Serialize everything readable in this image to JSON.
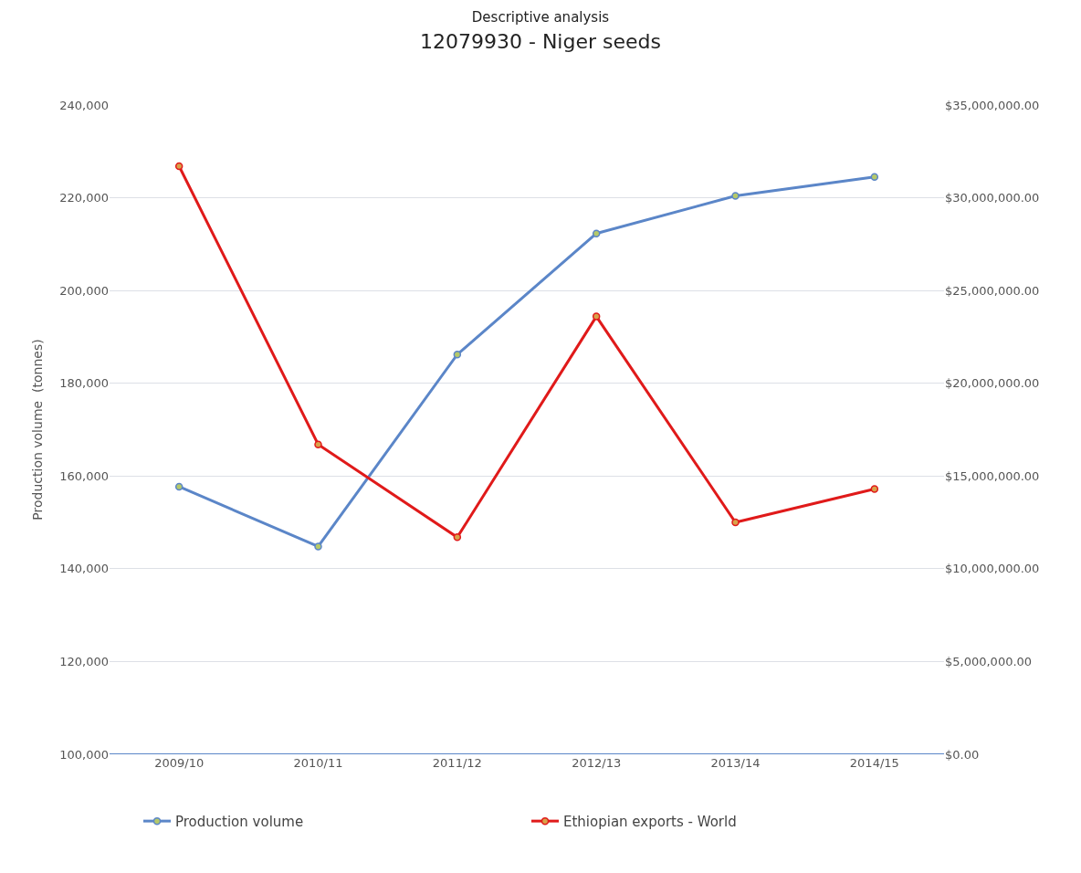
{
  "chart_data": {
    "type": "line",
    "title": "12079930 - Niger seeds",
    "subtitle": "Descriptive analysis",
    "ylabel": "Production volume  (tonnes)",
    "categories": [
      "2009/10",
      "2010/11",
      "2011/12",
      "2012/13",
      "2013/14",
      "2014/15"
    ],
    "series": [
      {
        "name": "Production volume",
        "color": "#5b86c8",
        "values": [
          157700,
          144800,
          186200,
          212300,
          220400,
          224500
        ]
      },
      {
        "name": "Ethiopian exports - World",
        "color": "#e01a1a",
        "axis": "y2",
        "values": [
          31700000,
          16700000,
          11700000,
          23600000,
          12500000,
          14300000
        ]
      }
    ],
    "ylim": [
      100000,
      240000
    ],
    "yticks": [
      {
        "value": 100000,
        "label": "100,000"
      },
      {
        "value": 120000,
        "label": "120,000"
      },
      {
        "value": 140000,
        "label": "140,000"
      },
      {
        "value": 160000,
        "label": "160,000"
      },
      {
        "value": 180000,
        "label": "180,000"
      },
      {
        "value": 200000,
        "label": "200,000"
      },
      {
        "value": 220000,
        "label": "220,000"
      },
      {
        "value": 240000,
        "label": "240,000"
      }
    ],
    "y2lim": [
      0,
      35000000
    ],
    "y2ticks": [
      {
        "value": 0,
        "label": "$0.00"
      },
      {
        "value": 5000000,
        "label": "$5,000,000.00"
      },
      {
        "value": 10000000,
        "label": "$10,000,000.00"
      },
      {
        "value": 15000000,
        "label": "$15,000,000.00"
      },
      {
        "value": 20000000,
        "label": "$20,000,000.00"
      },
      {
        "value": 25000000,
        "label": "$25,000,000.00"
      },
      {
        "value": 30000000,
        "label": "$30,000,000.00"
      },
      {
        "value": 35000000,
        "label": "$35,000,000.00"
      }
    ],
    "grid": "y",
    "legend": "bottom",
    "marker": "circle",
    "line_style": "solid"
  }
}
